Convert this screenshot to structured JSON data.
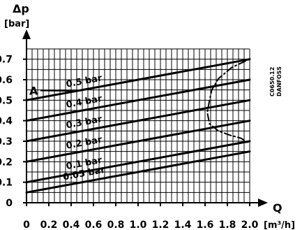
{
  "chart_data": {
    "type": "line",
    "ylabel": "Δp",
    "ylabel_unit": "[bar]",
    "xlabel": "Q",
    "xlabel_unit": "[m³/h]",
    "xlim": [
      0,
      2.0
    ],
    "ylim": [
      0,
      0.75
    ],
    "x_ticks": [
      0,
      0.2,
      0.4,
      0.6,
      0.8,
      1.0,
      1.2,
      1.4,
      1.6,
      1.8,
      2.0
    ],
    "x_tick_labels": [
      "0",
      "0.2",
      "0.4",
      "0.6",
      "0.8",
      "1.0",
      "1.2",
      "1.4",
      "1.6",
      "1.8",
      "2.0"
    ],
    "y_ticks": [
      0,
      0.1,
      0.2,
      0.3,
      0.4,
      0.5,
      0.6,
      0.7
    ],
    "y_tick_labels": [
      "0",
      "0.1",
      "0.2",
      "0.3",
      "0.4",
      "0.5",
      "0.6",
      "0.7"
    ],
    "grid": true,
    "series": [
      {
        "name": "0.5 bar",
        "x": [
          0,
          2.0
        ],
        "y": [
          0.5,
          0.7
        ]
      },
      {
        "name": "0.4 bar",
        "x": [
          0,
          2.0
        ],
        "y": [
          0.4,
          0.6
        ]
      },
      {
        "name": "0.3 bar",
        "x": [
          0,
          2.0
        ],
        "y": [
          0.3,
          0.5
        ]
      },
      {
        "name": "0.2 bar",
        "x": [
          0,
          2.0
        ],
        "y": [
          0.2,
          0.4
        ]
      },
      {
        "name": "0.1 bar",
        "x": [
          0,
          2.0
        ],
        "y": [
          0.1,
          0.3
        ]
      },
      {
        "name": "0.05 bar",
        "x": [
          0,
          2.0
        ],
        "y": [
          0.05,
          0.25
        ]
      }
    ],
    "boundary_curve": {
      "x": [
        1.96,
        1.84,
        1.72,
        1.66,
        1.64,
        1.62,
        1.64,
        1.72,
        1.82,
        1.92,
        1.98
      ],
      "y": [
        0.69,
        0.66,
        0.605,
        0.55,
        0.5,
        0.44,
        0.385,
        0.35,
        0.33,
        0.315,
        0.295
      ]
    },
    "annotations": [
      {
        "text": "A",
        "x": 0.05,
        "y": 0.52
      }
    ],
    "side_text": [
      "C0650.12",
      "DANFOSS"
    ]
  }
}
